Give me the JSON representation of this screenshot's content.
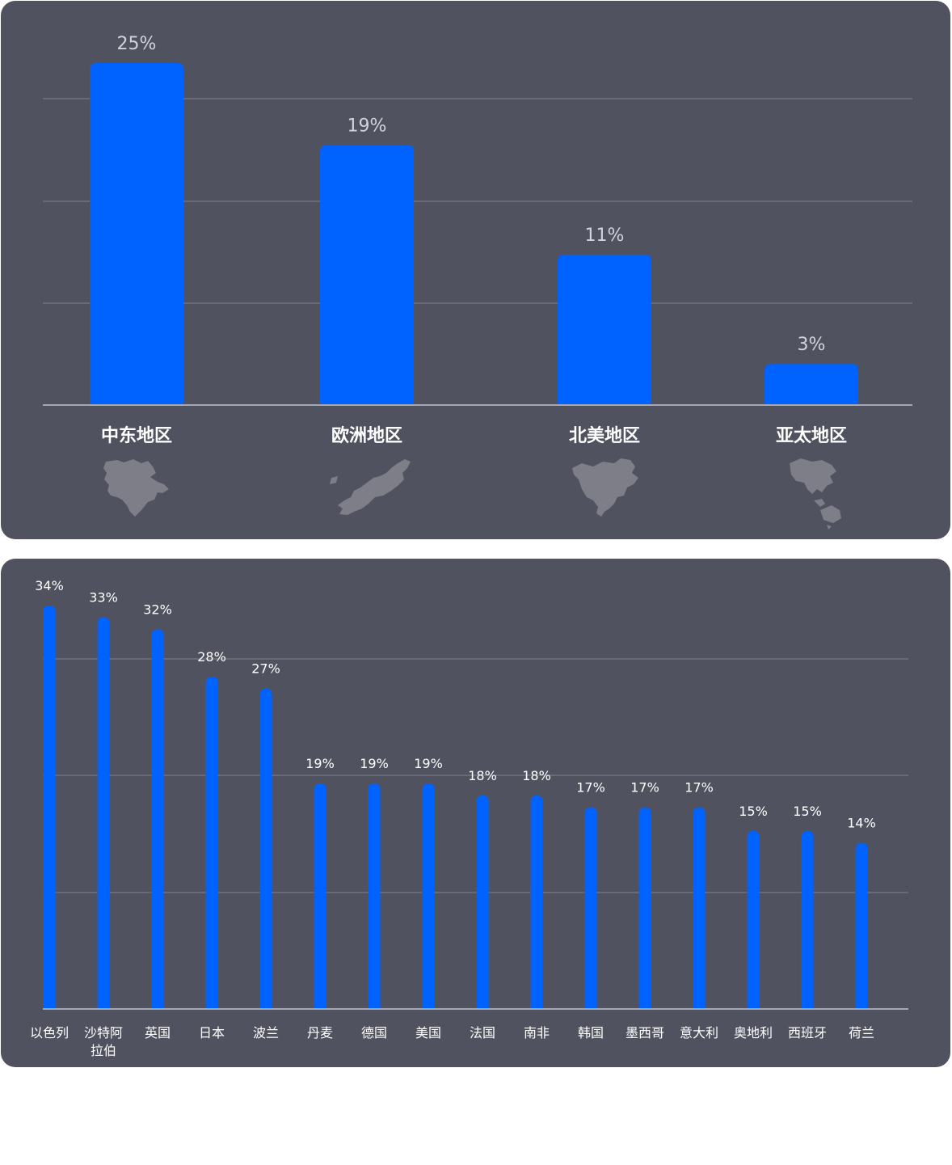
{
  "colors": {
    "panel_bg": "#51525f",
    "bar": "#0062ff",
    "gridline": "#777886",
    "axis": "#a6a7b2",
    "label_text": "#ffffff",
    "value_text_top": "#d2d3da",
    "map_fill": "#7d7e88"
  },
  "chart_data": [
    {
      "type": "bar",
      "categories": [
        "中东地区",
        "欧洲地区",
        "北美地区",
        "亚太地区"
      ],
      "values": [
        25,
        19,
        11,
        3
      ],
      "value_labels": [
        "25%",
        "19%",
        "11%",
        "3%"
      ],
      "category_icons": [
        "middle-east-map-icon",
        "europe-map-icon",
        "north-america-map-icon",
        "asia-pacific-map-icon"
      ],
      "ylim": [
        0,
        25
      ],
      "grid": true
    },
    {
      "type": "bar",
      "categories": [
        "以色列",
        "沙特阿\n拉伯",
        "英国",
        "日本",
        "波兰",
        "丹麦",
        "德国",
        "美国",
        "法国",
        "南非",
        "韩国",
        "墨西哥",
        "意大利",
        "奥地利",
        "西班牙",
        "荷兰"
      ],
      "values": [
        34,
        33,
        32,
        28,
        27,
        19,
        19,
        19,
        18,
        18,
        17,
        17,
        17,
        15,
        15,
        14
      ],
      "value_labels": [
        "34%",
        "33%",
        "32%",
        "28%",
        "27%",
        "19%",
        "19%",
        "19%",
        "18%",
        "18%",
        "17%",
        "17%",
        "17%",
        "15%",
        "15%",
        "14%"
      ],
      "ylim": [
        0,
        34
      ],
      "grid": true
    }
  ]
}
